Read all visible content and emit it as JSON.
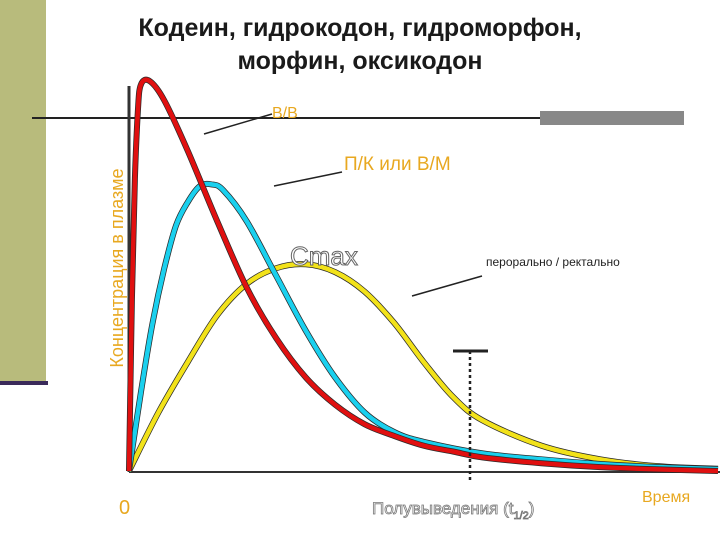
{
  "title": {
    "line1": "Кодеин, гидрокодон, гидроморфон,",
    "line2": "морфин, оксикодон"
  },
  "chart_data": {
    "type": "line",
    "ylabel": "Концентрация в плазме",
    "xlabel": "Время",
    "origin_label": "0",
    "cmax_label": "Cmax",
    "halflife_label": "Полувыведения (t",
    "halflife_subscript": "1/2",
    "halflife_close": ")",
    "grid": false,
    "series": [
      {
        "name": "В/В",
        "color": "#e01010",
        "points": [
          [
            0,
            0
          ],
          [
            0.005,
            0.44
          ],
          [
            0.01,
            0.75
          ],
          [
            0.015,
            0.92
          ],
          [
            0.02,
            0.99
          ],
          [
            0.035,
            1.0
          ],
          [
            0.06,
            0.95
          ],
          [
            0.1,
            0.82
          ],
          [
            0.15,
            0.64
          ],
          [
            0.2,
            0.47
          ],
          [
            0.25,
            0.34
          ],
          [
            0.3,
            0.24
          ],
          [
            0.35,
            0.17
          ],
          [
            0.4,
            0.12
          ],
          [
            0.45,
            0.09
          ],
          [
            0.5,
            0.065
          ],
          [
            0.55,
            0.05
          ],
          [
            0.6,
            0.035
          ],
          [
            0.7,
            0.02
          ],
          [
            0.8,
            0.01
          ],
          [
            0.9,
            0.004
          ],
          [
            1.0,
            0
          ]
        ]
      },
      {
        "name": "П/К или В/М",
        "color": "#1ad0ee",
        "points": [
          [
            0,
            0
          ],
          [
            0.02,
            0.2
          ],
          [
            0.04,
            0.38
          ],
          [
            0.06,
            0.52
          ],
          [
            0.08,
            0.63
          ],
          [
            0.1,
            0.69
          ],
          [
            0.12,
            0.73
          ],
          [
            0.14,
            0.735
          ],
          [
            0.16,
            0.72
          ],
          [
            0.2,
            0.64
          ],
          [
            0.25,
            0.5
          ],
          [
            0.3,
            0.36
          ],
          [
            0.35,
            0.24
          ],
          [
            0.4,
            0.15
          ],
          [
            0.45,
            0.1
          ],
          [
            0.5,
            0.075
          ],
          [
            0.6,
            0.045
          ],
          [
            0.7,
            0.03
          ],
          [
            0.8,
            0.018
          ],
          [
            0.9,
            0.01
          ],
          [
            1.0,
            0.005
          ]
        ]
      },
      {
        "name": "перорально / ректально",
        "color": "#f2e21a",
        "points": [
          [
            0,
            0
          ],
          [
            0.05,
            0.15
          ],
          [
            0.1,
            0.28
          ],
          [
            0.15,
            0.4
          ],
          [
            0.2,
            0.48
          ],
          [
            0.25,
            0.52
          ],
          [
            0.3,
            0.53
          ],
          [
            0.35,
            0.51
          ],
          [
            0.4,
            0.46
          ],
          [
            0.45,
            0.38
          ],
          [
            0.5,
            0.28
          ],
          [
            0.55,
            0.19
          ],
          [
            0.6,
            0.13
          ],
          [
            0.7,
            0.065
          ],
          [
            0.8,
            0.03
          ],
          [
            0.9,
            0.012
          ],
          [
            1.0,
            0.006
          ]
        ]
      }
    ]
  }
}
